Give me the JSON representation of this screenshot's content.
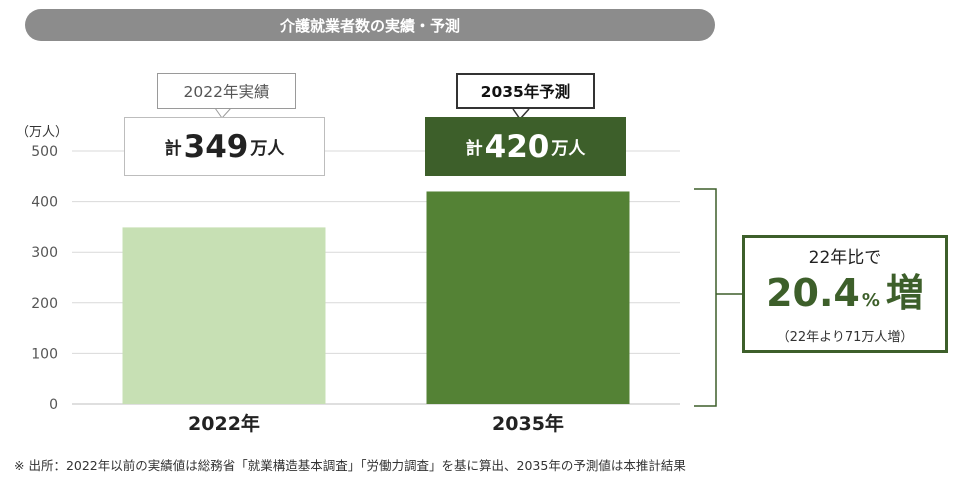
{
  "title": "介護就業者数の実績・予測",
  "chart_data": {
    "type": "bar",
    "categories": [
      "2022年",
      "2035年"
    ],
    "values": [
      349,
      420
    ],
    "colors": [
      "#c7e0b4",
      "#548235"
    ],
    "ylabel": "（万人）",
    "ylim": [
      0,
      500
    ],
    "yticks": [
      "0",
      "100",
      "200",
      "300",
      "400",
      "500"
    ],
    "grid": true
  },
  "labels": {
    "bar_2022": {
      "tag": "2022年実績",
      "prefix": "計",
      "number": "349",
      "unit": "万人"
    },
    "bar_2035": {
      "tag": "2035年予測",
      "prefix": "計",
      "number": "420",
      "unit": "万人"
    }
  },
  "callout": {
    "heading": "22年比で",
    "value": "20.4",
    "percent": "%",
    "suffix": "増",
    "sub": "（22年より71万人増）"
  },
  "footnote": "※ 出所：2022年以前の実績値は総務省「就業構造基本調査」「労働力調査」を基に算出、2035年の予測値は本推計結果",
  "colors": {
    "dark_green": "#3d5f2a",
    "light_green": "#c7e0b4",
    "mid_green": "#548235",
    "pill_gray": "#8c8c8c"
  }
}
